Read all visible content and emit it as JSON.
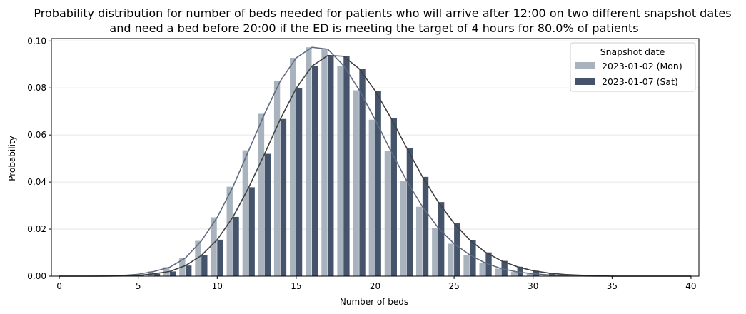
{
  "chart_data": {
    "type": "bar",
    "title_line1": "Probability distribution for number of beds needed for patients who will arrive after 12:00 on two different snapshot dates",
    "title_line2": "and need a bed before 20:00 if the ED is meeting the target of 4 hours for 80.0% of patients",
    "xlabel": "Number of beds",
    "ylabel": "Probability",
    "xlim": [
      -0.5,
      40.5
    ],
    "ylim": [
      0,
      0.101
    ],
    "xticks": [
      0,
      5,
      10,
      15,
      20,
      25,
      30,
      35,
      40
    ],
    "xtick_labels": [
      "0",
      "5",
      "10",
      "15",
      "20",
      "25",
      "30",
      "35",
      "40"
    ],
    "yticks": [
      0,
      0.02,
      0.04,
      0.06,
      0.08,
      0.1
    ],
    "ytick_labels": [
      "0.00",
      "0.02",
      "0.04",
      "0.06",
      "0.08",
      "0.10"
    ],
    "grid": "horizontal",
    "legend": {
      "title": "Snapshot date",
      "placement": "top-right"
    },
    "x": [
      0,
      1,
      2,
      3,
      4,
      5,
      6,
      7,
      8,
      9,
      10,
      11,
      12,
      13,
      14,
      15,
      16,
      17,
      18,
      19,
      20,
      21,
      22,
      23,
      24,
      25,
      26,
      27,
      28,
      29,
      30,
      31,
      32,
      33,
      34,
      35,
      36,
      37,
      38,
      39,
      40
    ],
    "series": [
      {
        "name": "2023-01-02 (Mon)",
        "color": "#a9b3be",
        "line_color": "#5f6b80",
        "values": [
          0,
          0,
          0,
          0.0001,
          0.0003,
          0.0008,
          0.002,
          0.0038,
          0.0078,
          0.015,
          0.025,
          0.038,
          0.0535,
          0.069,
          0.083,
          0.0928,
          0.0973,
          0.0965,
          0.0895,
          0.079,
          0.0665,
          0.0532,
          0.0405,
          0.0295,
          0.0205,
          0.0138,
          0.009,
          0.0055,
          0.0032,
          0.0018,
          0.001,
          0.0005,
          0.0003,
          0.0001,
          0,
          0,
          0,
          0,
          0,
          0,
          0
        ]
      },
      {
        "name": "2023-01-07 (Sat)",
        "color": "#45546b",
        "line_color": "#404040",
        "values": [
          0,
          0,
          0,
          0,
          0.0001,
          0.0003,
          0.001,
          0.002,
          0.0045,
          0.0088,
          0.0155,
          0.0252,
          0.0378,
          0.052,
          0.0668,
          0.0798,
          0.0893,
          0.0938,
          0.0935,
          0.0881,
          0.0788,
          0.0672,
          0.0545,
          0.0422,
          0.0315,
          0.0225,
          0.0153,
          0.0101,
          0.0065,
          0.004,
          0.0023,
          0.0013,
          0.0007,
          0.0004,
          0.0002,
          0,
          0,
          0,
          0,
          0,
          0
        ]
      }
    ]
  }
}
